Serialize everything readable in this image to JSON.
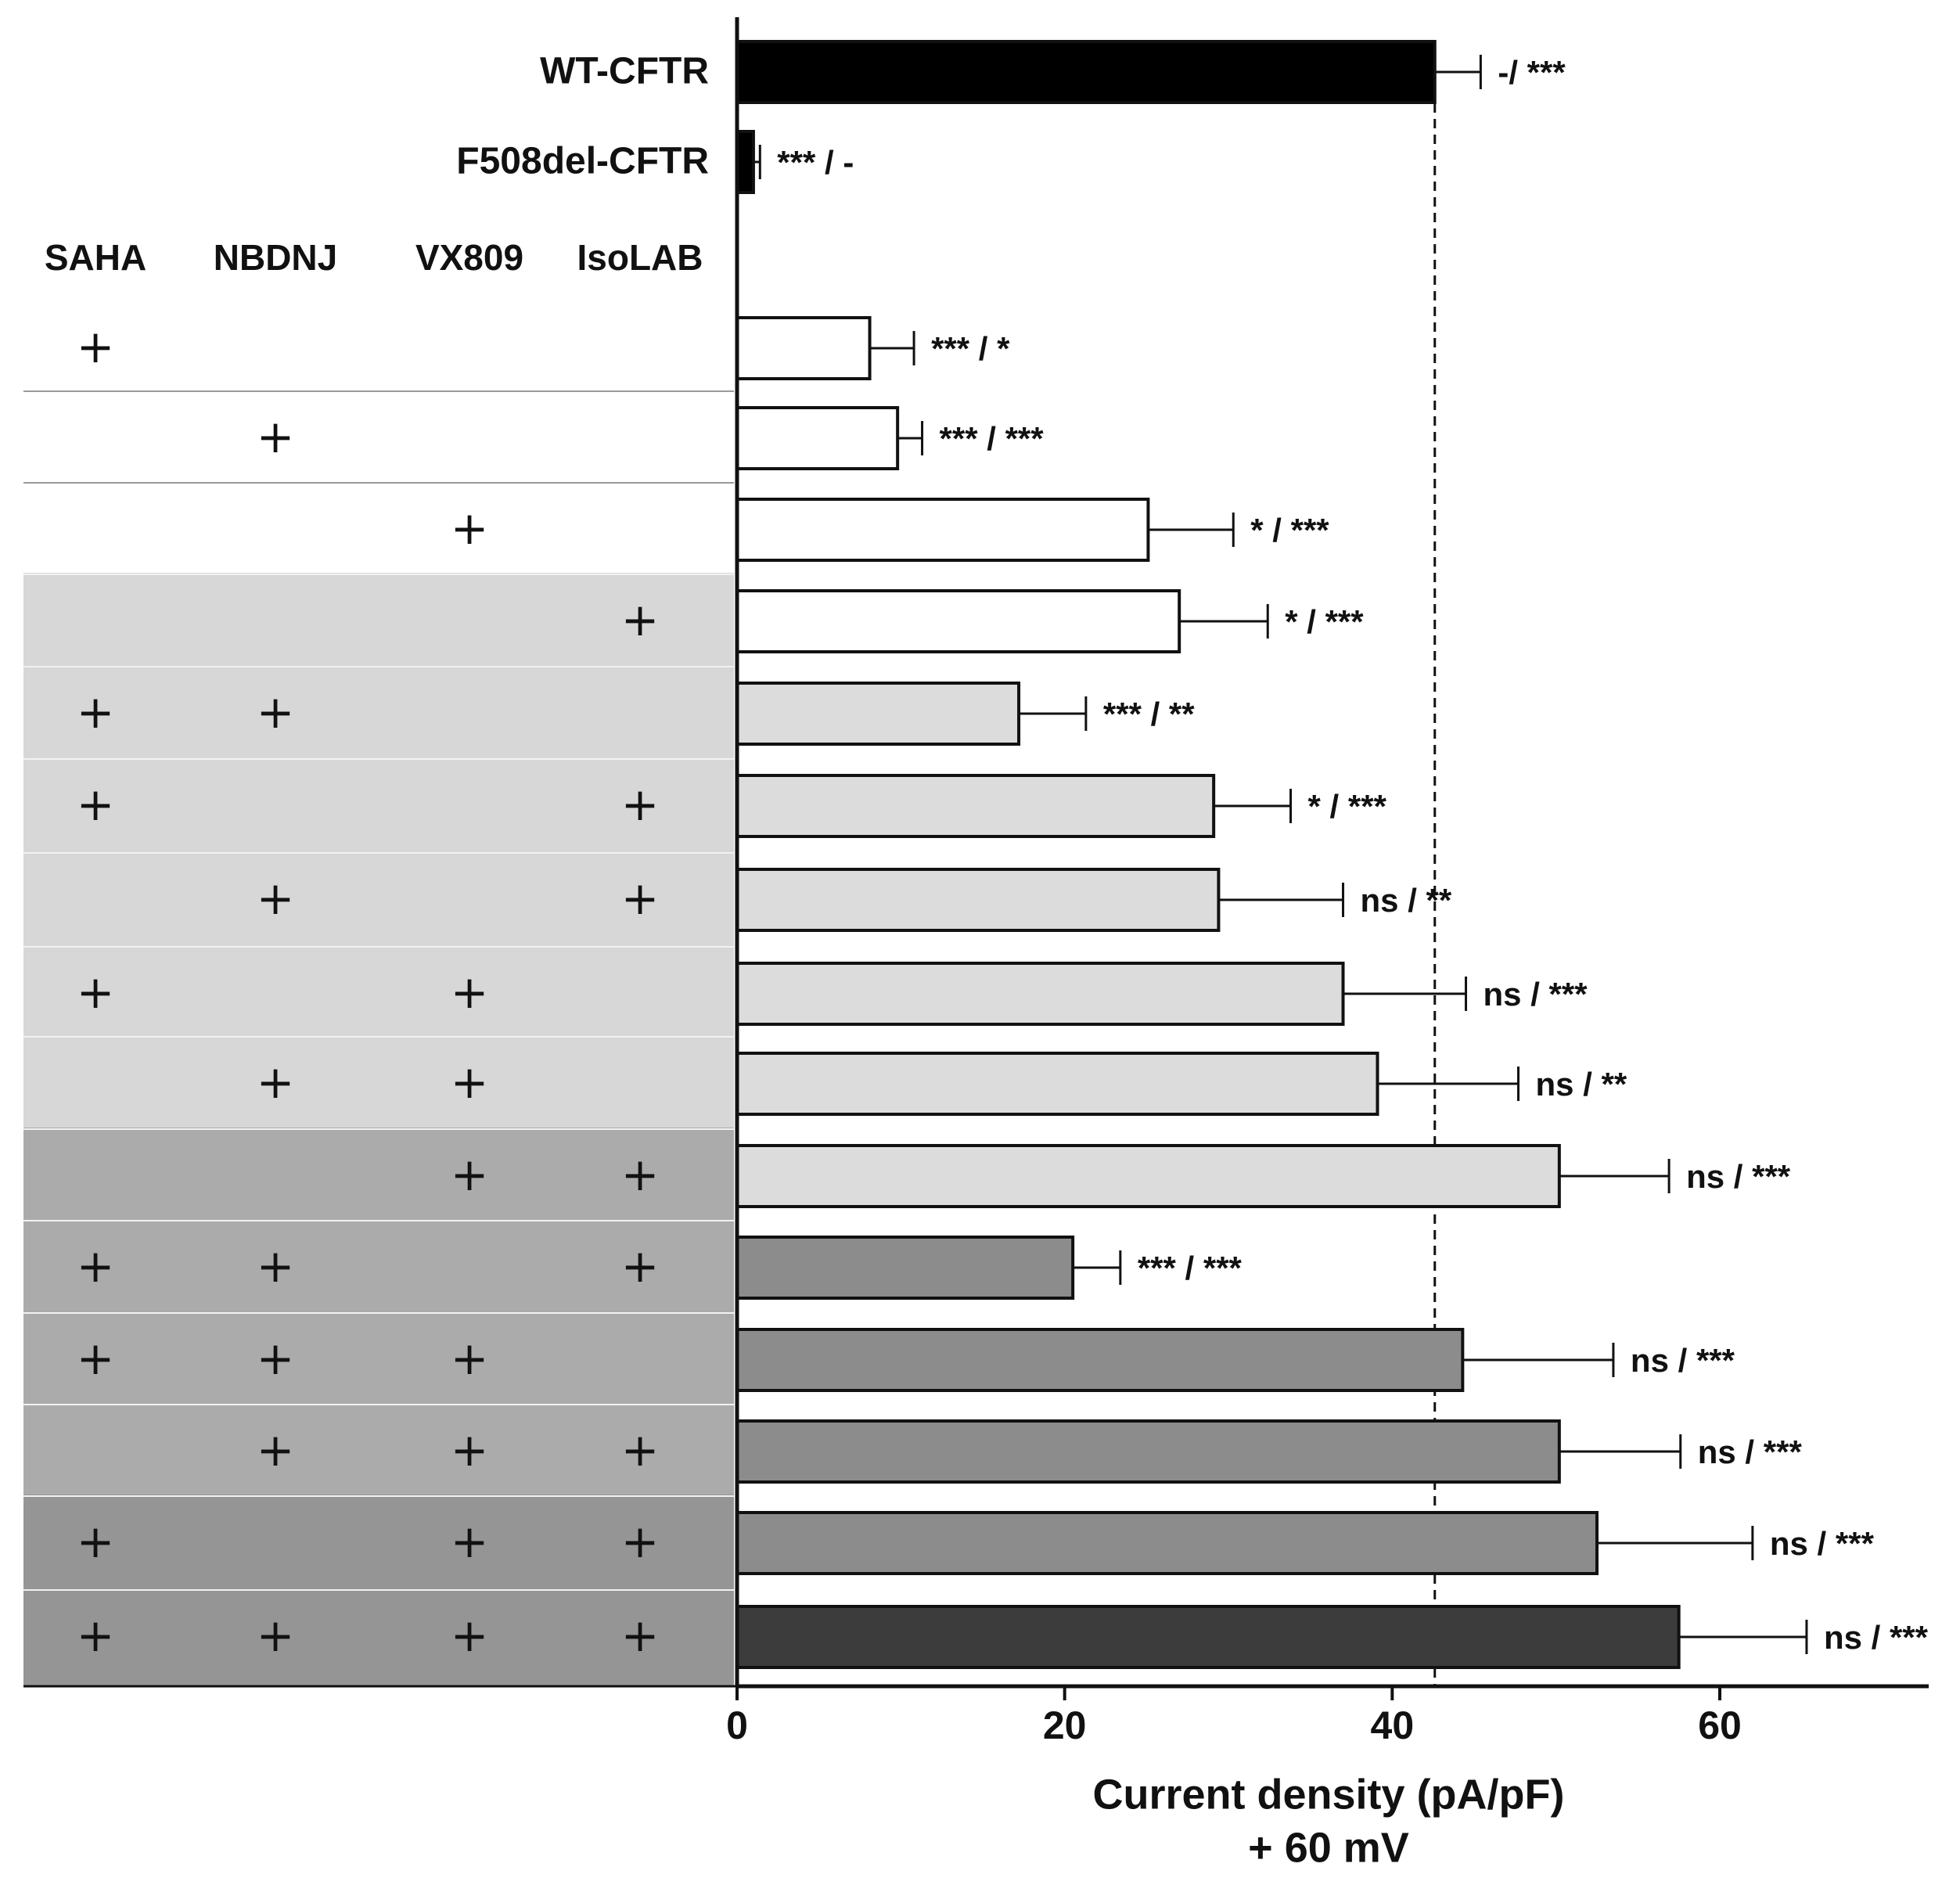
{
  "chart_data": {
    "type": "bar",
    "orientation": "horizontal",
    "xlabel": "Current density (pA/pF)",
    "xlabel_line2": "+ 60 mV",
    "xlim": [
      0,
      73
    ],
    "xticks": [
      0,
      20,
      40,
      60
    ],
    "reference_line_value": 42.6,
    "treatment_headers": [
      "SAHA",
      "NBDNJ",
      "VX809",
      "IsoLAB"
    ],
    "plus_symbol": "+",
    "colors": {
      "black": "#000000",
      "white": "#ffffff",
      "light": "#dcdcdc",
      "medium": "#8c8c8c",
      "dark": "#3c3c3c",
      "band_light": "#d7d7d7",
      "band_medium": "#ababab",
      "band_dark": "#959595"
    },
    "bars": [
      {
        "label": "WT-CFTR",
        "value": 42.6,
        "error": 2.8,
        "sig": "-/ ***",
        "fill": "black",
        "treat": [
          0,
          0,
          0,
          0
        ]
      },
      {
        "label": "F508del-CFTR",
        "value": 1.0,
        "error": 0.4,
        "sig": "*** / -",
        "fill": "black",
        "treat": [
          0,
          0,
          0,
          0
        ]
      },
      {
        "label": "",
        "value": 8.1,
        "error": 2.7,
        "sig": "*** / *",
        "fill": "white",
        "treat": [
          1,
          0,
          0,
          0
        ]
      },
      {
        "label": "",
        "value": 9.8,
        "error": 1.5,
        "sig": "*** / ***",
        "fill": "white",
        "treat": [
          0,
          1,
          0,
          0
        ]
      },
      {
        "label": "",
        "value": 25.1,
        "error": 5.2,
        "sig": "* / ***",
        "fill": "white",
        "treat": [
          0,
          0,
          1,
          0
        ]
      },
      {
        "label": "",
        "value": 27.0,
        "error": 5.4,
        "sig": "* / ***",
        "fill": "white",
        "treat": [
          0,
          0,
          0,
          1
        ]
      },
      {
        "label": "",
        "value": 17.2,
        "error": 4.1,
        "sig": "*** / **",
        "fill": "light",
        "treat": [
          1,
          1,
          0,
          0
        ]
      },
      {
        "label": "",
        "value": 29.1,
        "error": 4.7,
        "sig": "* / ***",
        "fill": "light",
        "treat": [
          1,
          0,
          0,
          1
        ]
      },
      {
        "label": "",
        "value": 29.4,
        "error": 7.6,
        "sig": "ns / **",
        "fill": "light",
        "treat": [
          0,
          1,
          0,
          1
        ]
      },
      {
        "label": "",
        "value": 37.0,
        "error": 7.5,
        "sig": "ns / ***",
        "fill": "light",
        "treat": [
          1,
          0,
          1,
          0
        ]
      },
      {
        "label": "",
        "value": 39.1,
        "error": 8.6,
        "sig": "ns / **",
        "fill": "light",
        "treat": [
          0,
          1,
          1,
          0
        ]
      },
      {
        "label": "",
        "value": 50.2,
        "error": 6.7,
        "sig": "ns / ***",
        "fill": "light",
        "treat": [
          0,
          0,
          1,
          1
        ]
      },
      {
        "label": "",
        "value": 20.5,
        "error": 2.9,
        "sig": "*** / ***",
        "fill": "medium",
        "treat": [
          1,
          1,
          0,
          1
        ]
      },
      {
        "label": "",
        "value": 44.3,
        "error": 9.2,
        "sig": "ns / ***",
        "fill": "medium",
        "treat": [
          1,
          1,
          1,
          0
        ]
      },
      {
        "label": "",
        "value": 50.2,
        "error": 7.4,
        "sig": "ns / ***",
        "fill": "medium",
        "treat": [
          0,
          1,
          1,
          1
        ]
      },
      {
        "label": "",
        "value": 52.5,
        "error": 9.5,
        "sig": "ns / ***",
        "fill": "medium",
        "treat": [
          1,
          0,
          1,
          1
        ]
      },
      {
        "label": "",
        "value": 57.5,
        "error": 7.8,
        "sig": "ns / ***",
        "fill": "dark",
        "treat": [
          1,
          1,
          1,
          1
        ]
      }
    ]
  }
}
